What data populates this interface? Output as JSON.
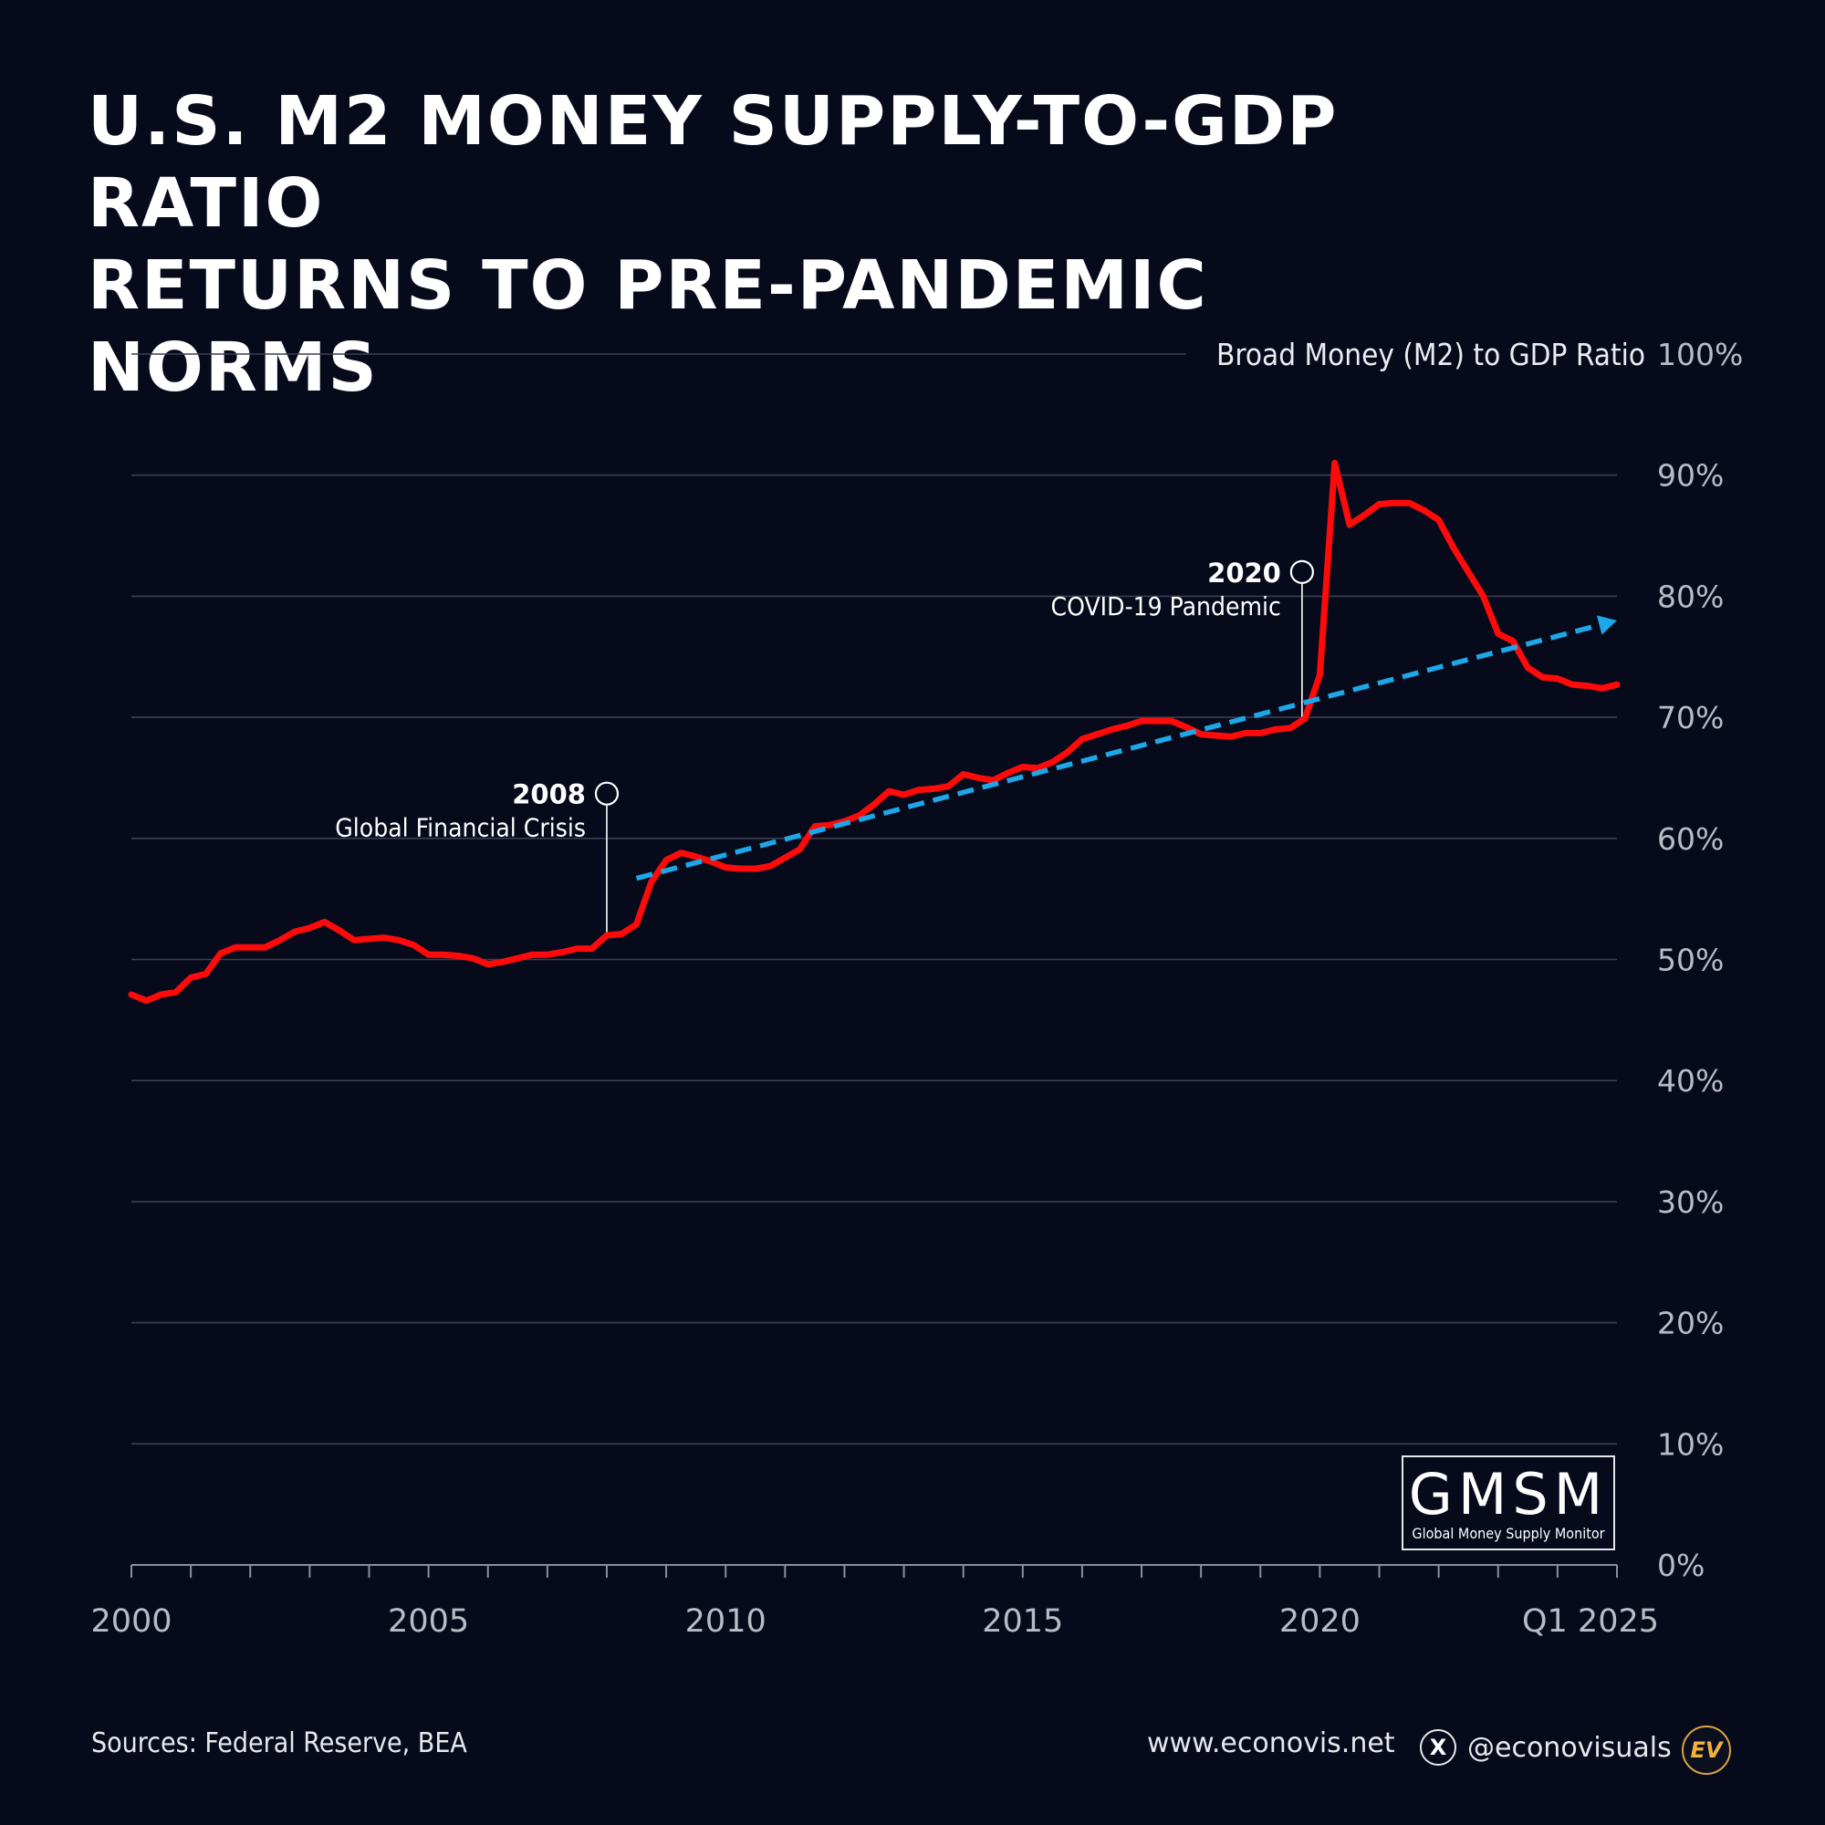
{
  "title": {
    "line1": "U.S. M2 Money Supply-to-GDP Ratio",
    "line2": "Returns to Pre-Pandemic Norms"
  },
  "chart_data": {
    "type": "line",
    "title": "U.S. M2 Money Supply-to-GDP Ratio Returns to Pre-Pandemic Norms",
    "ylabel": "Broad Money (M2) to GDP Ratio",
    "xlabel": "",
    "ylim": [
      0,
      100
    ],
    "xlim": [
      2000,
      2025
    ],
    "y_ticks": [
      0,
      10,
      20,
      30,
      40,
      50,
      60,
      70,
      80,
      90,
      100
    ],
    "y_tick_labels": [
      "0%",
      "10%",
      "20%",
      "30%",
      "40%",
      "50%",
      "60%",
      "70%",
      "80%",
      "90%",
      "100%"
    ],
    "x_ticks": [
      2000,
      2005,
      2010,
      2015,
      2020,
      2025
    ],
    "x_tick_labels": [
      "2000",
      "2005",
      "2010",
      "2015",
      "2020",
      "Q1 2025"
    ],
    "grid": true,
    "series": [
      {
        "name": "Broad Money (M2) to GDP Ratio",
        "color": "#ff0a0a",
        "x": [
          2000.0,
          2000.25,
          2000.5,
          2000.75,
          2001.0,
          2001.25,
          2001.5,
          2001.75,
          2002.0,
          2002.25,
          2002.5,
          2002.75,
          2003.0,
          2003.25,
          2003.5,
          2003.75,
          2004.0,
          2004.25,
          2004.5,
          2004.75,
          2005.0,
          2005.25,
          2005.5,
          2005.75,
          2006.0,
          2006.25,
          2006.5,
          2006.75,
          2007.0,
          2007.25,
          2007.5,
          2007.75,
          2008.0,
          2008.25,
          2008.5,
          2008.75,
          2009.0,
          2009.25,
          2009.5,
          2009.75,
          2010.0,
          2010.25,
          2010.5,
          2010.75,
          2011.0,
          2011.25,
          2011.5,
          2011.75,
          2012.0,
          2012.25,
          2012.5,
          2012.75,
          2013.0,
          2013.25,
          2013.5,
          2013.75,
          2014.0,
          2014.25,
          2014.5,
          2014.75,
          2015.0,
          2015.25,
          2015.5,
          2015.75,
          2016.0,
          2016.25,
          2016.5,
          2016.75,
          2017.0,
          2017.25,
          2017.5,
          2017.75,
          2018.0,
          2018.25,
          2018.5,
          2018.75,
          2019.0,
          2019.25,
          2019.5,
          2019.75,
          2020.0,
          2020.25,
          2020.5,
          2020.75,
          2021.0,
          2021.25,
          2021.5,
          2021.75,
          2022.0,
          2022.25,
          2022.5,
          2022.75,
          2023.0,
          2023.25,
          2023.5,
          2023.75,
          2024.0,
          2024.25,
          2024.5,
          2024.75,
          2025.0
        ],
        "values": [
          47.1,
          46.6,
          47.1,
          47.3,
          48.5,
          48.8,
          50.5,
          51.0,
          51.0,
          51.0,
          51.6,
          52.3,
          52.6,
          53.1,
          52.4,
          51.6,
          51.7,
          51.8,
          51.6,
          51.2,
          50.4,
          50.4,
          50.3,
          50.1,
          49.6,
          49.8,
          50.1,
          50.4,
          50.4,
          50.6,
          50.9,
          50.9,
          52.0,
          52.1,
          52.9,
          56.4,
          58.2,
          58.8,
          58.5,
          58.1,
          57.6,
          57.5,
          57.5,
          57.7,
          58.4,
          59.1,
          61.0,
          61.1,
          61.4,
          61.9,
          62.8,
          63.9,
          63.6,
          64.0,
          64.1,
          64.3,
          65.3,
          65.0,
          64.8,
          65.4,
          65.9,
          65.8,
          66.3,
          67.1,
          68.2,
          68.6,
          69.0,
          69.3,
          69.7,
          69.7,
          69.7,
          69.2,
          68.6,
          68.5,
          68.4,
          68.7,
          68.7,
          69.0,
          69.1,
          69.9,
          73.5,
          91.0,
          85.9,
          86.7,
          87.6,
          87.7,
          87.7,
          87.1,
          86.3,
          84.0,
          82.0,
          80.0,
          76.9,
          76.3,
          74.1,
          73.3,
          73.2,
          72.7,
          72.6,
          72.4,
          72.7
        ]
      },
      {
        "name": "Trend",
        "color": "#1ea7e8",
        "style": "dashed-arrow",
        "x": [
          2008.5,
          2025.0
        ],
        "values": [
          56.7,
          78.0
        ]
      }
    ],
    "annotations": [
      {
        "year": "2008",
        "label": "Global Financial Crisis",
        "x": 2008.0,
        "y": 52.0,
        "marker_y": 63.7
      },
      {
        "year": "2020",
        "label": "COVID-19 Pandemic",
        "x": 2019.7,
        "y": 70.0,
        "marker_y": 82.0
      }
    ]
  },
  "gmsm_logo": {
    "name": "GMSM",
    "subtitle": "Global Money Supply Monitor"
  },
  "footer": {
    "sources": "Sources: Federal Reserve, BEA",
    "website": "www.econovis.net",
    "x_icon": "x-logo-icon",
    "handle": "@econovisuals",
    "logo": "EV"
  }
}
